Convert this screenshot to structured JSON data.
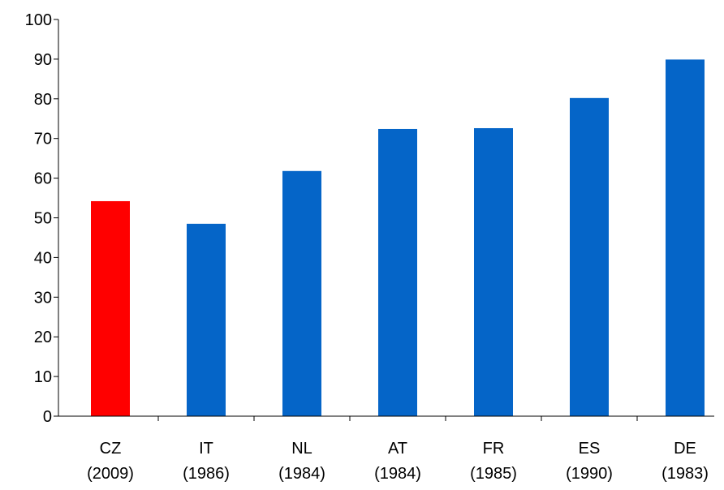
{
  "chart_data": {
    "type": "bar",
    "title": "",
    "xlabel": "",
    "ylabel": "",
    "categories": [
      {
        "name": "CZ",
        "year": "(2009)"
      },
      {
        "name": "IT",
        "year": "(1986)"
      },
      {
        "name": "NL",
        "year": "(1984)"
      },
      {
        "name": "AT",
        "year": "(1984)"
      },
      {
        "name": "FR",
        "year": "(1985)"
      },
      {
        "name": "ES",
        "year": "(1990)"
      },
      {
        "name": "DE",
        "year": "(1983)"
      }
    ],
    "values": [
      54.2,
      48.5,
      61.8,
      72.4,
      72.6,
      80.2,
      89.9
    ],
    "highlight_index": 0,
    "ylim": [
      0,
      100
    ],
    "yticks": [
      0,
      10,
      20,
      30,
      40,
      50,
      60,
      70,
      80,
      90,
      100
    ],
    "grid": false,
    "legend": "none"
  },
  "colors": {
    "bar": "#0565C8",
    "highlight": "#FF0000",
    "axis": "#000000"
  }
}
